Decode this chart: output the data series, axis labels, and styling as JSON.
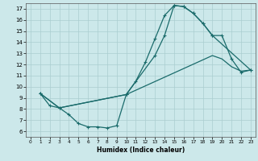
{
  "xlabel": "Humidex (Indice chaleur)",
  "bg_color": "#cce8ea",
  "grid_color": "#aacdd0",
  "line_color": "#1a6b6b",
  "xlim": [
    -0.5,
    23.5
  ],
  "ylim": [
    5.5,
    17.5
  ],
  "xticks": [
    0,
    1,
    2,
    3,
    4,
    5,
    6,
    7,
    8,
    9,
    10,
    11,
    12,
    13,
    14,
    15,
    16,
    17,
    18,
    19,
    20,
    21,
    22,
    23
  ],
  "yticks": [
    6,
    7,
    8,
    9,
    10,
    11,
    12,
    13,
    14,
    15,
    16,
    17
  ],
  "curve_zigzag_x": [
    1,
    2,
    3,
    4,
    5,
    6,
    7,
    8,
    9,
    10,
    11,
    12,
    13,
    14,
    15,
    16,
    17,
    18,
    19,
    20,
    21,
    22,
    23
  ],
  "curve_zigzag_y": [
    9.4,
    8.3,
    8.1,
    7.5,
    6.7,
    6.4,
    6.4,
    6.3,
    6.5,
    9.3,
    10.5,
    12.2,
    14.3,
    16.4,
    17.3,
    17.2,
    16.6,
    15.7,
    14.6,
    14.6,
    12.5,
    11.3,
    11.5
  ],
  "curve_upper_x": [
    1,
    3,
    10,
    13,
    14,
    15,
    16,
    17,
    18,
    19,
    23
  ],
  "curve_upper_y": [
    9.4,
    8.1,
    9.3,
    12.8,
    14.6,
    17.3,
    17.2,
    16.6,
    15.7,
    14.6,
    11.5
  ],
  "curve_lower_x": [
    1,
    3,
    10,
    19,
    20,
    21,
    22,
    23
  ],
  "curve_lower_y": [
    9.4,
    8.1,
    9.3,
    12.8,
    12.5,
    11.8,
    11.4,
    11.5
  ]
}
